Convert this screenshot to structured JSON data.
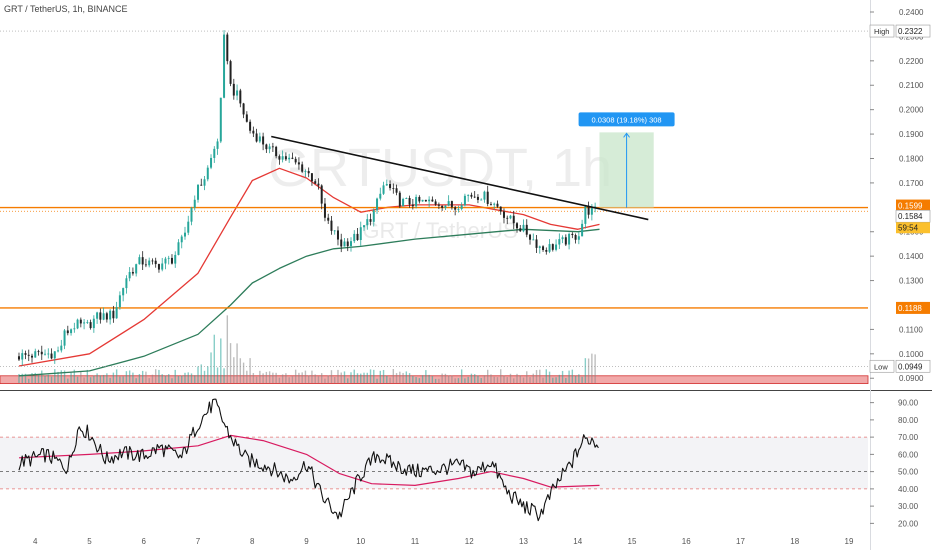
{
  "header": {
    "title": "GRT / TetherUS, 1h, BINANCE"
  },
  "watermark": {
    "symbol": "GRTUSDT, 1h",
    "name": "GRT / TetherUS"
  },
  "colors": {
    "up": "#26a69a",
    "down": "#222222",
    "ma_fast": "#e53935",
    "ma_slow": "#2e7d5b",
    "hline": "#f57c00",
    "rsi": "#111111",
    "rsi_ma": "#d81b60",
    "zone": "#ef9a9a",
    "target": "#c8e6c9",
    "badge_blue": "#2196f3",
    "badge_orange": "#f57c00"
  },
  "badges": {
    "high": {
      "label": "High",
      "value": "0.2322"
    },
    "low": {
      "label": "Low",
      "value": "0.0949"
    },
    "price_upper": "0.1599",
    "price_lower": "0.1584",
    "countdown": "59:54",
    "support": "0.1188",
    "measure": "0.0308 (19.18%) 308"
  },
  "chart_data": [
    {
      "type": "candlestick",
      "x_ticks": [
        "4",
        "5",
        "6",
        "7",
        "8",
        "9",
        "10",
        "11",
        "12",
        "13",
        "14",
        "15",
        "16",
        "17",
        "18",
        "19"
      ],
      "ylim": [
        0.086,
        0.24
      ],
      "y_ticks": [
        "0.0900",
        "0.1000",
        "0.1100",
        "0.1300",
        "0.1400",
        "0.1500",
        "0.1700",
        "0.1800",
        "0.1900",
        "0.2000",
        "0.2100",
        "0.2200",
        "0.2300",
        "0.2400"
      ],
      "price_path": [
        [
          3.7,
          0.099
        ],
        [
          4.0,
          0.0995
        ],
        [
          4.3,
          0.1
        ],
        [
          4.5,
          0.101
        ],
        [
          4.6,
          0.108
        ],
        [
          4.8,
          0.112
        ],
        [
          5.0,
          0.111
        ],
        [
          5.2,
          0.115
        ],
        [
          5.5,
          0.116
        ],
        [
          5.75,
          0.132
        ],
        [
          6.0,
          0.138
        ],
        [
          6.3,
          0.136
        ],
        [
          6.6,
          0.139
        ],
        [
          6.8,
          0.148
        ],
        [
          7.0,
          0.165
        ],
        [
          7.2,
          0.173
        ],
        [
          7.45,
          0.19
        ],
        [
          7.55,
          0.233
        ],
        [
          7.65,
          0.21
        ],
        [
          7.8,
          0.205
        ],
        [
          8.0,
          0.192
        ],
        [
          8.2,
          0.188
        ],
        [
          8.4,
          0.183
        ],
        [
          8.7,
          0.18
        ],
        [
          9.0,
          0.176
        ],
        [
          9.25,
          0.17
        ],
        [
          9.4,
          0.155
        ],
        [
          9.7,
          0.145
        ],
        [
          10.0,
          0.148
        ],
        [
          10.3,
          0.158
        ],
        [
          10.5,
          0.17
        ],
        [
          10.8,
          0.162
        ],
        [
          11.1,
          0.162
        ],
        [
          11.5,
          0.162
        ],
        [
          11.8,
          0.16
        ],
        [
          12.0,
          0.165
        ],
        [
          12.3,
          0.165
        ],
        [
          12.6,
          0.16
        ],
        [
          12.8,
          0.155
        ],
        [
          13.1,
          0.15
        ],
        [
          13.4,
          0.143
        ],
        [
          13.6,
          0.144
        ],
        [
          13.8,
          0.146
        ],
        [
          14.0,
          0.148
        ],
        [
          14.1,
          0.15
        ],
        [
          14.2,
          0.159
        ],
        [
          14.35,
          0.1584
        ]
      ],
      "ma_fast_path": [
        [
          3.7,
          0.095
        ],
        [
          5.0,
          0.1
        ],
        [
          6.0,
          0.114
        ],
        [
          7.0,
          0.133
        ],
        [
          7.6,
          0.156
        ],
        [
          8.0,
          0.171
        ],
        [
          8.5,
          0.176
        ],
        [
          9.0,
          0.172
        ],
        [
          9.5,
          0.164
        ],
        [
          10.0,
          0.158
        ],
        [
          10.5,
          0.16
        ],
        [
          11.0,
          0.161
        ],
        [
          11.5,
          0.161
        ],
        [
          12.0,
          0.161
        ],
        [
          12.5,
          0.159
        ],
        [
          13.0,
          0.157
        ],
        [
          13.5,
          0.153
        ],
        [
          14.0,
          0.151
        ],
        [
          14.4,
          0.153
        ]
      ],
      "ma_slow_path": [
        [
          3.7,
          0.091
        ],
        [
          5.0,
          0.093
        ],
        [
          6.0,
          0.099
        ],
        [
          7.0,
          0.108
        ],
        [
          7.6,
          0.12
        ],
        [
          8.0,
          0.129
        ],
        [
          8.5,
          0.135
        ],
        [
          9.0,
          0.14
        ],
        [
          9.5,
          0.143
        ],
        [
          10.0,
          0.144
        ],
        [
          11.0,
          0.147
        ],
        [
          12.0,
          0.149
        ],
        [
          12.5,
          0.15
        ],
        [
          13.0,
          0.151
        ],
        [
          14.0,
          0.15
        ],
        [
          14.4,
          0.151
        ]
      ],
      "trendline": [
        [
          8.35,
          0.189
        ],
        [
          15.3,
          0.155
        ]
      ],
      "horizontal_levels": [
        0.1599,
        0.1188
      ],
      "target_box": {
        "x": [
          14.4,
          15.4
        ],
        "y": [
          0.1599,
          0.1907
        ]
      },
      "low_zone": [
        0.0878,
        0.091
      ]
    },
    {
      "type": "line",
      "name": "RSI",
      "ylim": [
        15,
        95
      ],
      "y_ticks": [
        "20.00",
        "30.00",
        "40.00",
        "50.00",
        "60.00",
        "70.00",
        "80.00",
        "90.00"
      ],
      "bands": [
        70,
        50,
        40
      ],
      "rsi_path": [
        [
          3.7,
          55
        ],
        [
          4.2,
          60
        ],
        [
          4.6,
          52
        ],
        [
          4.8,
          76
        ],
        [
          5.0,
          72
        ],
        [
          5.3,
          57
        ],
        [
          5.6,
          61
        ],
        [
          6.0,
          59
        ],
        [
          6.3,
          64
        ],
        [
          6.7,
          58
        ],
        [
          7.0,
          78
        ],
        [
          7.3,
          90
        ],
        [
          7.6,
          70
        ],
        [
          7.9,
          57
        ],
        [
          8.3,
          53
        ],
        [
          8.7,
          45
        ],
        [
          9.0,
          55
        ],
        [
          9.3,
          35
        ],
        [
          9.6,
          24
        ],
        [
          10.0,
          48
        ],
        [
          10.3,
          60
        ],
        [
          10.6,
          54
        ],
        [
          11.0,
          50
        ],
        [
          11.4,
          51
        ],
        [
          11.8,
          54
        ],
        [
          12.1,
          49
        ],
        [
          12.4,
          56
        ],
        [
          12.7,
          38
        ],
        [
          13.0,
          30
        ],
        [
          13.3,
          25
        ],
        [
          13.6,
          42
        ],
        [
          13.9,
          56
        ],
        [
          14.1,
          68
        ],
        [
          14.25,
          69
        ],
        [
          14.4,
          65
        ]
      ],
      "rsi_ma_path": [
        [
          3.7,
          58
        ],
        [
          5.0,
          60
        ],
        [
          6.0,
          62
        ],
        [
          7.0,
          65
        ],
        [
          7.6,
          71
        ],
        [
          8.2,
          68
        ],
        [
          9.0,
          60
        ],
        [
          9.6,
          49
        ],
        [
          10.2,
          43
        ],
        [
          11.0,
          42
        ],
        [
          11.8,
          46
        ],
        [
          12.4,
          50
        ],
        [
          13.0,
          46
        ],
        [
          13.5,
          41
        ],
        [
          14.4,
          42
        ]
      ]
    }
  ]
}
